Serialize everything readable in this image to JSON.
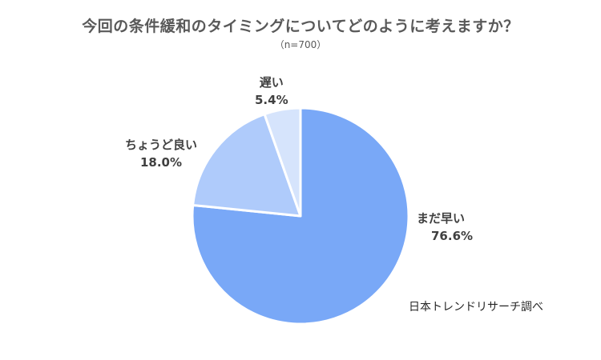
{
  "chart_data": {
    "type": "pie",
    "title": "今回の条件緩和のタイミングについてどのように考えますか？",
    "subtitle": "（n=700）",
    "slices": [
      {
        "label": "まだ早い",
        "value": 76.6,
        "value_label": "76.6%",
        "color": "#79a8f7"
      },
      {
        "label": "ちょうど良い",
        "value": 18.0,
        "value_label": "18.0%",
        "color": "#afcbfb"
      },
      {
        "label": "遅い",
        "value": 5.4,
        "value_label": "5.4%",
        "color": "#d6e4fc"
      }
    ],
    "start_angle": "12 o'clock",
    "direction": "clockwise",
    "source": "日本トレンドリサーチ調べ"
  }
}
